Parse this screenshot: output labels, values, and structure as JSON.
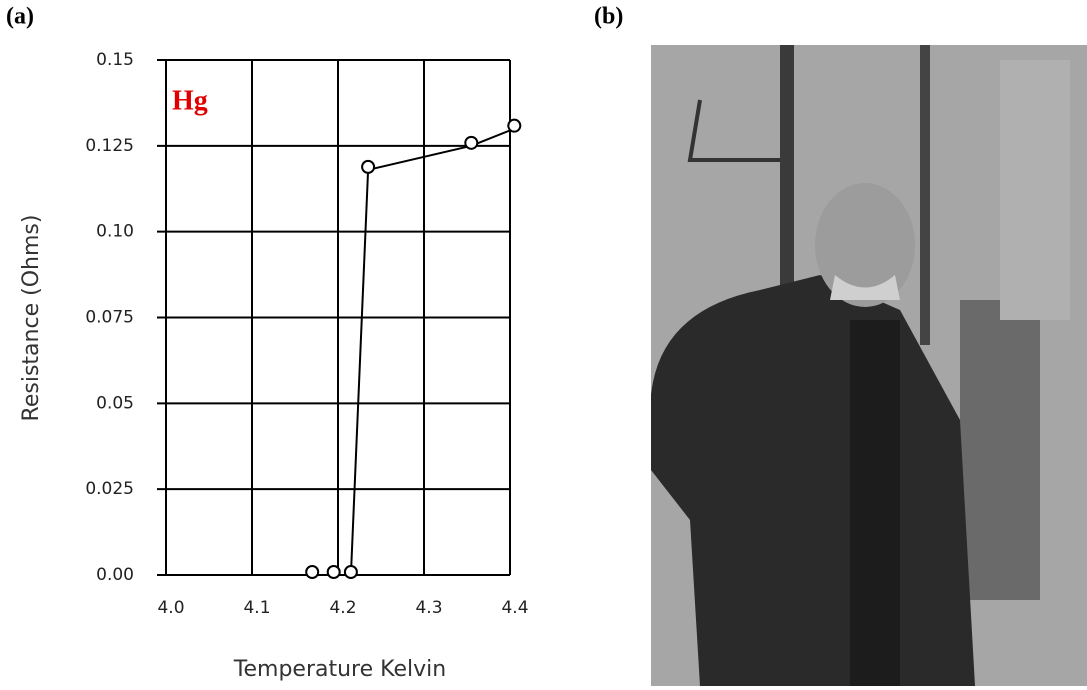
{
  "panel_labels": [
    "(a)",
    "(b)"
  ],
  "chart_data": {
    "type": "line",
    "annotation": "Hg",
    "x_label": "Temperature Kelvin",
    "y_label": "Resistance (Ohms)",
    "x": [
      4.17,
      4.195,
      4.215,
      4.235,
      4.355,
      4.405
    ],
    "series": [
      {
        "name": "Hg",
        "color": "#000000",
        "values": [
          0,
          0,
          0,
          0.118,
          0.125,
          0.13
        ]
      }
    ],
    "xlim": [
      4.0,
      4.4
    ],
    "xticks": [
      {
        "value": 4,
        "label": "4.0"
      },
      4.1,
      4.2,
      4.3,
      4.4
    ],
    "ylim": [
      0,
      0.15
    ],
    "yticks": [
      {
        "value": 0,
        "label": "0.00"
      },
      0.025,
      0.05,
      0.075,
      {
        "value": 0.1,
        "label": "0.10"
      },
      0.125,
      0.15
    ],
    "grid": true
  }
}
